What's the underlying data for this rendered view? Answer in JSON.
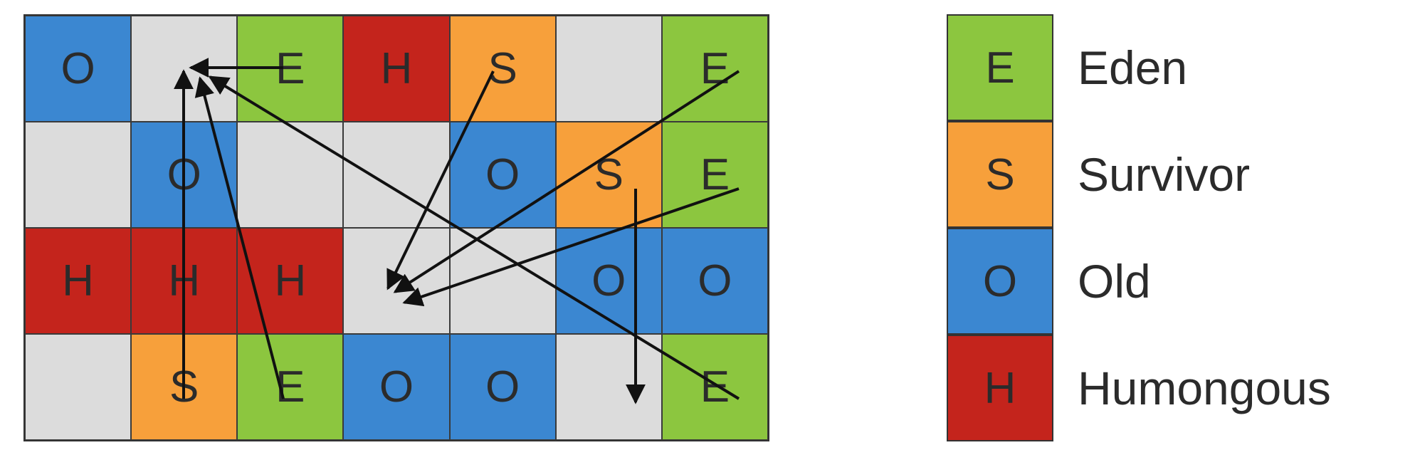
{
  "colors": {
    "E": "#8cc63f",
    "S": "#f7a03b",
    "O": "#3b87d1",
    "H": "#c4241c",
    "empty": "#dcdcdc"
  },
  "grid": [
    [
      "O",
      "",
      "E",
      "H",
      "S",
      "",
      "E"
    ],
    [
      "",
      "O",
      "",
      "",
      "O",
      "S",
      "E"
    ],
    [
      "H",
      "H",
      "H",
      "",
      "",
      "O",
      "O"
    ],
    [
      "",
      "S",
      "E",
      "O",
      "O",
      "",
      "E"
    ]
  ],
  "legend": [
    {
      "code": "E",
      "label": "Eden"
    },
    {
      "code": "S",
      "label": "Survivor"
    },
    {
      "code": "O",
      "label": "Old"
    },
    {
      "code": "H",
      "label": "Humongous"
    }
  ]
}
